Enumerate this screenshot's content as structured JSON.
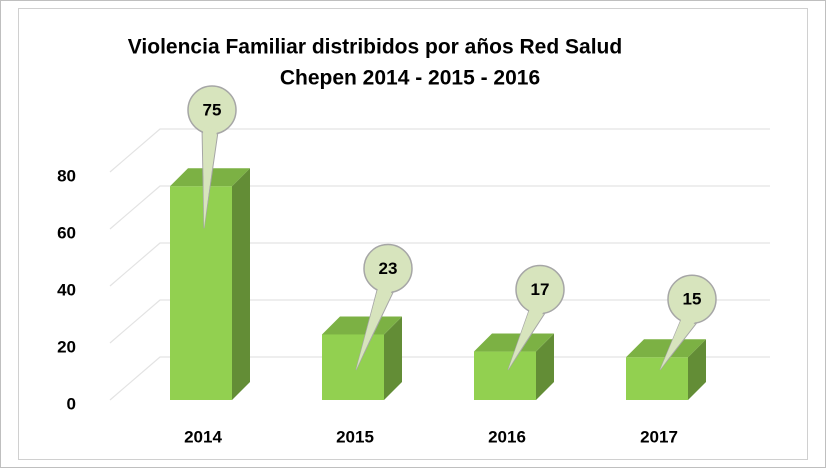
{
  "chart_data": {
    "type": "bar3d",
    "title": [
      "Violencia Familiar distribidos por años Red Salud",
      "Chepen 2014 - 2015 - 2016"
    ],
    "categories": [
      "2014",
      "2015",
      "2016",
      "2017"
    ],
    "values": [
      75,
      23,
      17,
      15
    ],
    "color": "#92d050",
    "ylim": [
      0,
      80
    ],
    "yticks": [
      0,
      20,
      40,
      60,
      80
    ],
    "grid": true
  }
}
